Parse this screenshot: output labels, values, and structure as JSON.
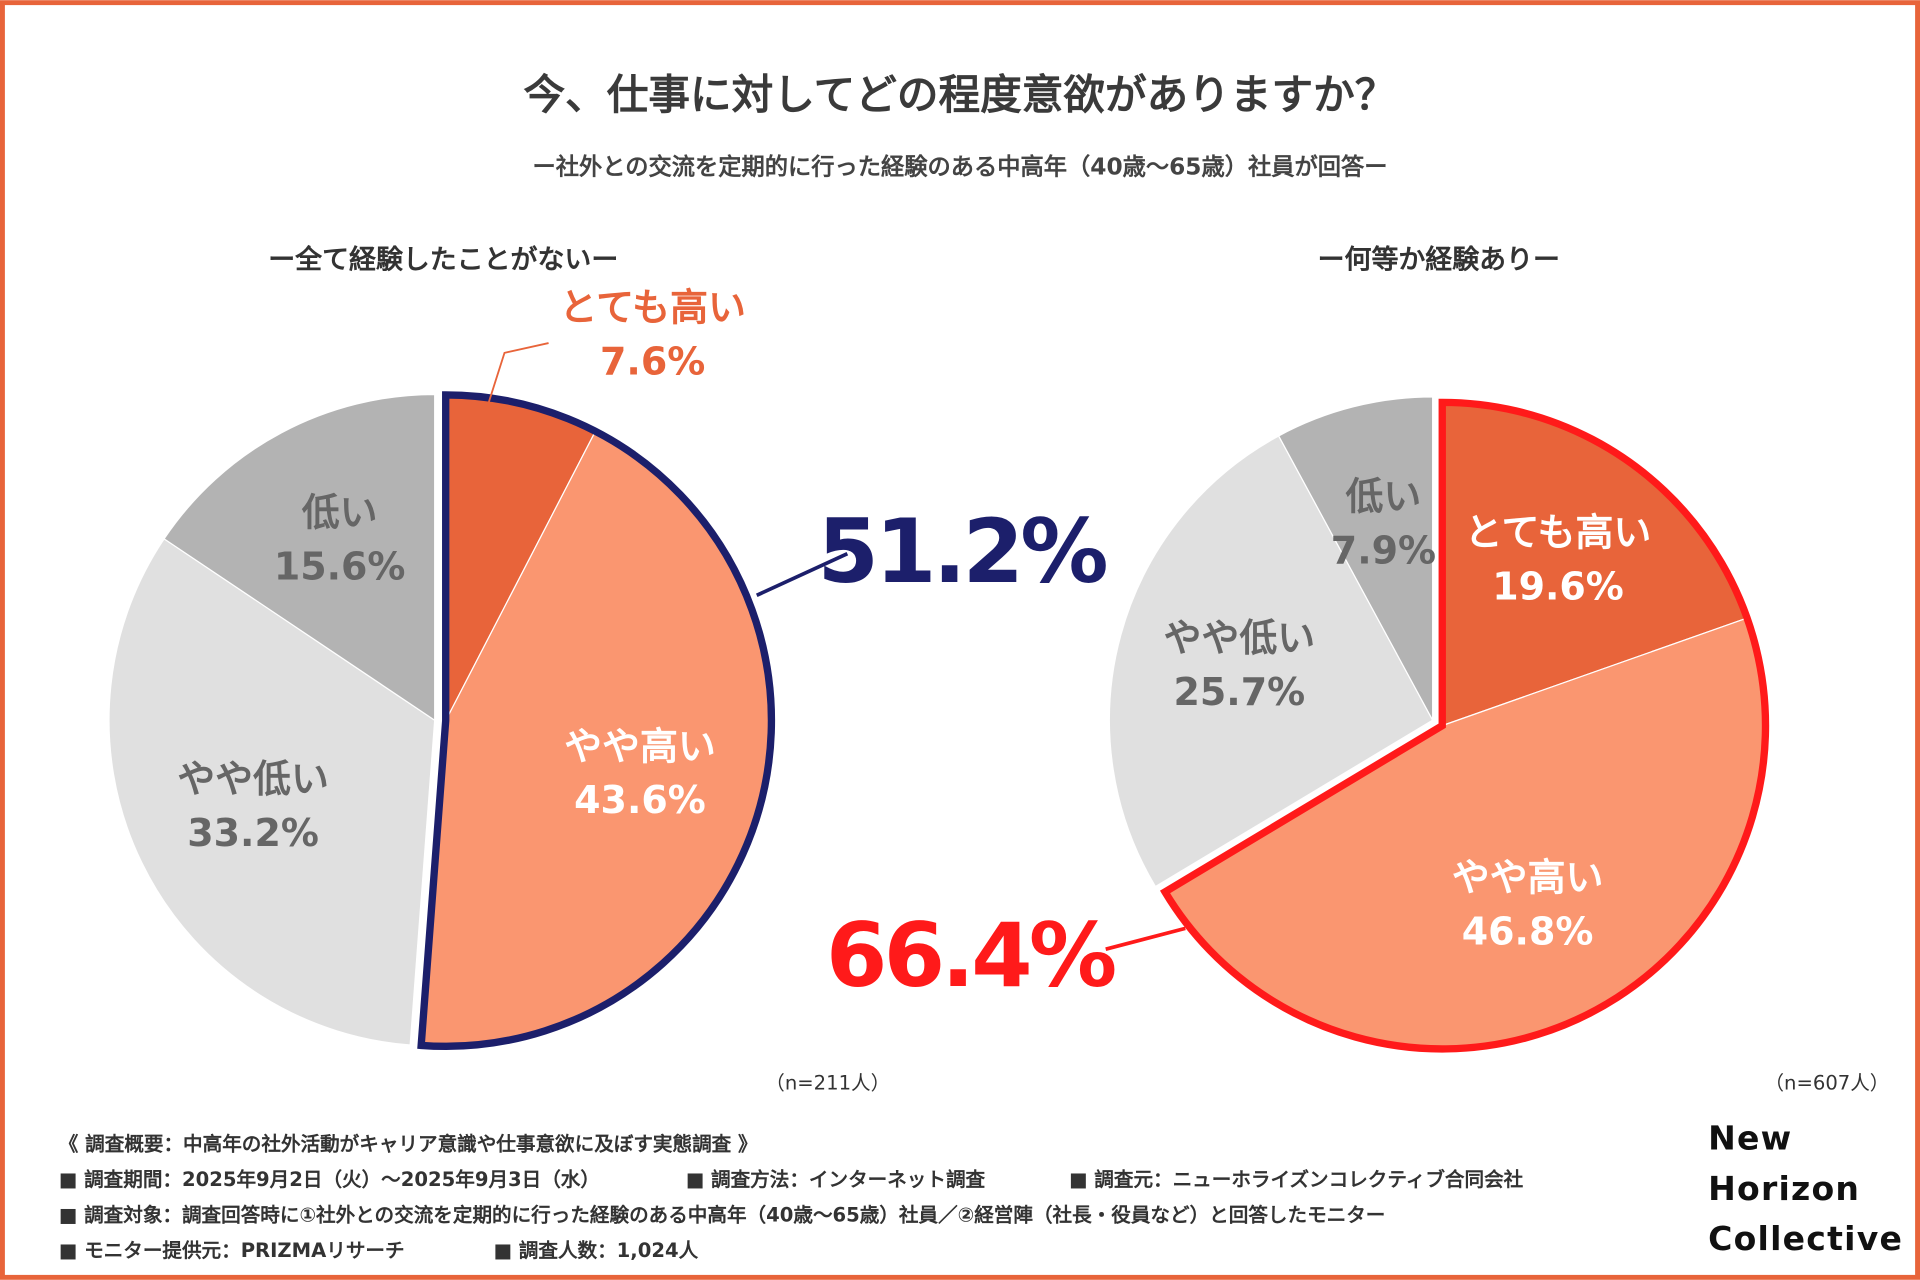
{
  "header": {
    "title": "今、仕事に対してどの程度意欲がありますか？",
    "subtitle": "ー社外との交流を定期的に行った経験のある中高年（40歳〜65歳）社員が回答ー"
  },
  "chart_data": [
    {
      "type": "pie",
      "title": "ー全て経験したことがないー",
      "categories": [
        "とても高い",
        "やや高い",
        "やや低い",
        "低い"
      ],
      "values": [
        7.6,
        43.6,
        33.2,
        15.6
      ],
      "value_labels": [
        "7.6%",
        "43.6%",
        "33.2%",
        "15.6%"
      ],
      "colors": [
        "#e8643a",
        "#fa9670",
        "#e0e0e0",
        "#b3b3b3"
      ],
      "highlight_label": "51.2%",
      "highlight_color": "#1c1f6b",
      "note": "（n=211人）"
    },
    {
      "type": "pie",
      "title": "ー何等か経験ありー",
      "categories": [
        "とても高い",
        "やや高い",
        "やや低い",
        "低い"
      ],
      "values": [
        19.6,
        46.8,
        25.7,
        7.9
      ],
      "value_labels": [
        "19.6%",
        "46.8%",
        "25.7%",
        "7.9%"
      ],
      "colors": [
        "#e8643a",
        "#fa9670",
        "#e0e0e0",
        "#b3b3b3"
      ],
      "highlight_label": "66.4%",
      "highlight_color": "#ff1a1a",
      "note": "（n=607人）"
    }
  ],
  "footer": {
    "heading": "《 調査概要：中高年の社外活動がキャリア意識や仕事意欲に及ぼす実態調査 》",
    "rows": [
      [
        "■ 調査期間：2025年9月2日（火）〜2025年9月3日（水）",
        "■ 調査方法：インターネット調査",
        "■ 調査元：ニューホライズンコレクティブ合同会社"
      ],
      [
        "■ 調査対象：調査回答時に①社外との交流を定期的に行った経験のある中高年（40歳〜65歳）社員／②経営陣（社長・役員など）と回答したモニター"
      ],
      [
        "■ モニター提供元：PRIZMAリサーチ",
        "■ 調査人数：1,024人"
      ]
    ],
    "logo": [
      "New",
      "Horizon",
      "Collective"
    ]
  }
}
